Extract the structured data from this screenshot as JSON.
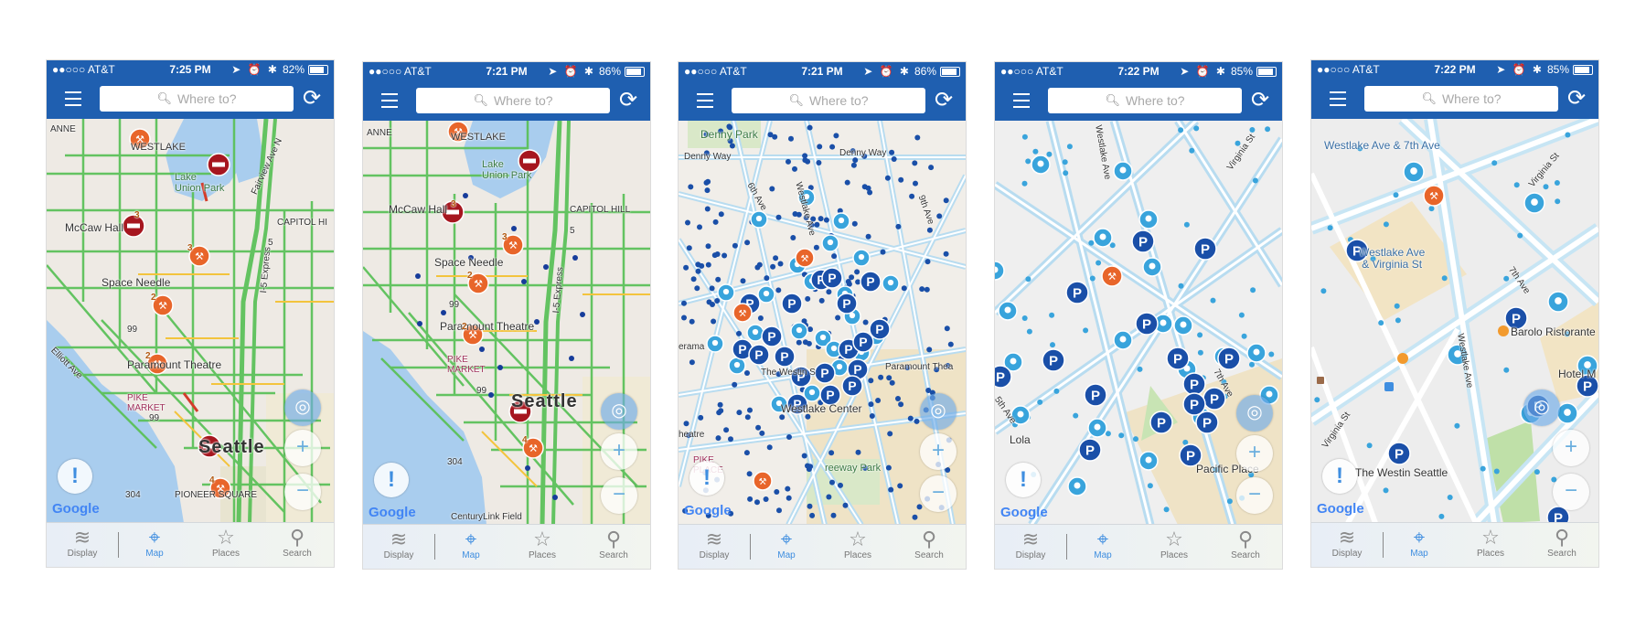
{
  "common": {
    "carrier": "●●○○○ AT&T",
    "search_placeholder": "Where to?",
    "alert_symbol": "!",
    "google_logo": "Google",
    "tabs": [
      {
        "label": "Display",
        "icon": "layers-icon"
      },
      {
        "label": "Map",
        "icon": "map-pin-icon"
      },
      {
        "label": "Places",
        "icon": "star-icon"
      },
      {
        "label": "Search",
        "icon": "search-icon"
      }
    ],
    "active_tab": "Map",
    "colors": {
      "header": "#1f5fb0",
      "traffic_green": "#4fbf52",
      "parking_blue": "#1a6fc1",
      "meter_blue": "#39a4dc",
      "construction_orange": "#e8652a",
      "closure_red": "#b8131f"
    }
  },
  "screens": [
    {
      "time": "7:25 PM",
      "battery": "82%",
      "battery_level": 0.82,
      "view": "traffic",
      "labels": {
        "anne": "ANNE",
        "westlake": "WESTLAKE",
        "lake_union": "Lake\nUnion Park",
        "mccaw": "McCaw Hall",
        "space_needle": "Space Needle",
        "capitol_hill": "CAPITOL HI",
        "paramount": "Paramount Theatre",
        "pike_market": "PIKE\nMARKET",
        "seattle": "Seattle",
        "pioneer": "PIONEER SQUARE",
        "route99a": "99",
        "route99b": "99",
        "route304": "304",
        "i5": "5",
        "express": "I-5 Express",
        "fairview": "Fairview Ave N",
        "elliott": "Elliott Ave"
      },
      "badges": [
        "3",
        "3",
        "2",
        "2",
        "4"
      ]
    },
    {
      "time": "7:21 PM",
      "battery": "86%",
      "battery_level": 0.86,
      "view": "traffic",
      "labels": {
        "anne": "ANNE",
        "westlake": "WESTLAKE",
        "lake_union": "Lake\nUnion Park",
        "mccaw": "McCaw Hall",
        "space_needle": "Space Needle",
        "capitol_hill": "CAPITOL HILL",
        "paramount": "Paramount Theatre",
        "pike_market": "PIKE\nMARKET",
        "seattle": "Seattle",
        "route99a": "99",
        "route99b": "99",
        "route304": "304",
        "i5": "5",
        "express": "I-5 Express",
        "centurylink": "CenturyLink Field"
      },
      "badges": [
        "3",
        "3",
        "2",
        "2",
        "4"
      ]
    },
    {
      "time": "7:21 PM",
      "battery": "86%",
      "battery_level": 0.86,
      "view": "parking-dense",
      "labels": {
        "denny_park": "Denny Park",
        "denny_way_a": "Denny Way",
        "denny_way_b": "Denny Way",
        "cinerama": "erama",
        "westin": "The Westin S",
        "westlake_center": "Westlake Center",
        "paramount": "Paramount Thea",
        "pike_place": "PIKE\nPLACE",
        "theatre": "heatre",
        "freeway_park": "reeway Park",
        "ave_a": "6th Ave",
        "ave_b": "Westlake Ave",
        "ave_c": "9th Ave"
      }
    },
    {
      "time": "7:22 PM",
      "battery": "85%",
      "battery_level": 0.85,
      "view": "parking-zoomed",
      "labels": {
        "westlake_ave": "Westlake Ave",
        "virginia": "Virginia St",
        "lola": "Lola",
        "pacific_place": "Pacific Place",
        "fifth_ave": "5th Ave",
        "seventh_ave": "7th Ave"
      }
    },
    {
      "time": "7:22 PM",
      "battery": "85%",
      "battery_level": 0.85,
      "view": "parking-street",
      "labels": {
        "westlake_7th": "Westlake Ave & 7th Ave",
        "westlake_virginia": "Westlake Ave\n& Virginia St",
        "barolo": "Barolo Ristorante",
        "hotel": "Hotel M",
        "westin": "The Westin Seattle",
        "virginia_a": "Virginia St",
        "virginia_b": "Virginia St",
        "seventh_ave": "7th Ave",
        "westlake_ave": "Westlake Ave"
      }
    }
  ]
}
